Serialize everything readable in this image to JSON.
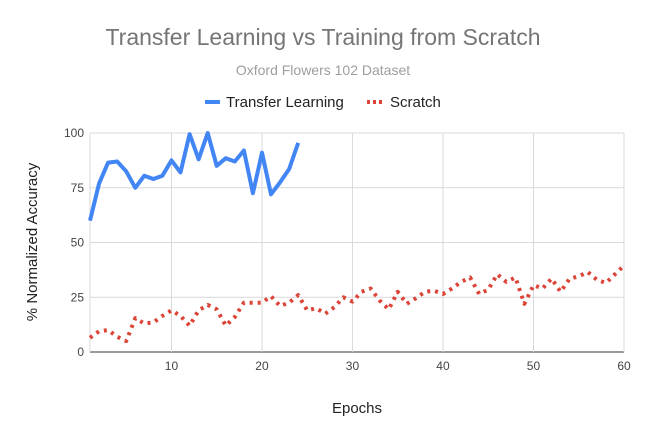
{
  "chart_data": {
    "type": "line",
    "title": "Transfer Learning vs Training from Scratch",
    "subtitle": "Oxford Flowers 102 Dataset",
    "xlabel": "Epochs",
    "ylabel": "% Normalized Accuracy",
    "xlim": [
      1,
      60
    ],
    "ylim": [
      0,
      100
    ],
    "x_ticks": [
      10,
      20,
      30,
      40,
      50,
      60
    ],
    "y_ticks": [
      0,
      25,
      50,
      75,
      100
    ],
    "grid": true,
    "legend_position": "top",
    "series": [
      {
        "name": "Transfer Learning",
        "style": "solid",
        "color": "#4285f4",
        "x": [
          1,
          2,
          3,
          4,
          5,
          6,
          7,
          8,
          9,
          10,
          11,
          12,
          13,
          14,
          15,
          16,
          17,
          18,
          19,
          20,
          21,
          22,
          23,
          24
        ],
        "values": [
          60,
          77,
          86.5,
          87,
          82.5,
          75,
          80.5,
          79,
          80.5,
          87.5,
          82,
          99.5,
          88,
          100,
          85,
          88.5,
          87,
          92,
          72.5,
          91,
          72,
          77.5,
          83.5,
          95.5
        ]
      },
      {
        "name": "Scratch",
        "style": "dotted",
        "color": "#db4437",
        "x": [
          1,
          2,
          3,
          4,
          5,
          6,
          7,
          8,
          9,
          10,
          11,
          12,
          13,
          14,
          15,
          16,
          17,
          18,
          19,
          20,
          21,
          22,
          23,
          24,
          25,
          26,
          27,
          28,
          29,
          30,
          31,
          32,
          33,
          34,
          35,
          36,
          37,
          38,
          39,
          40,
          41,
          42,
          43,
          44,
          45,
          46,
          47,
          48,
          49,
          50,
          51,
          52,
          53,
          54,
          55,
          56,
          57,
          58,
          59,
          60
        ],
        "values": [
          6.5,
          9.5,
          10,
          7,
          5,
          15.5,
          13,
          13.5,
          16.5,
          19,
          16.5,
          12,
          19,
          21.5,
          19.5,
          12,
          16,
          22.5,
          22.5,
          22.5,
          25.5,
          21,
          22.5,
          26,
          19,
          20,
          17.5,
          20.5,
          25,
          23,
          27.5,
          29,
          23.5,
          19.5,
          27.5,
          22,
          24.5,
          27.5,
          28,
          26.5,
          29,
          32,
          34,
          26.5,
          28.5,
          35.5,
          32,
          34,
          22,
          30.5,
          29,
          33.5,
          27.5,
          33.5,
          34.5,
          36.5,
          33,
          31.5,
          35.5,
          39.5
        ]
      }
    ]
  }
}
